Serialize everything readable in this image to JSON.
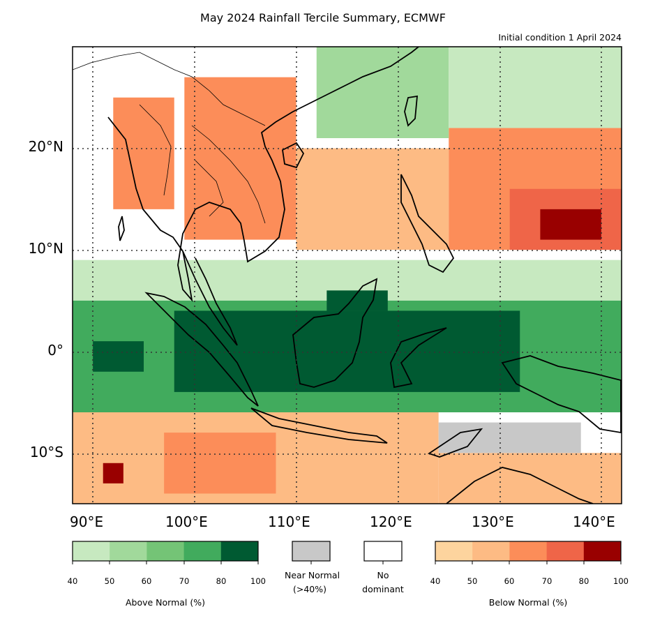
{
  "title": "May 2024 Rainfall Tercile Summary, ECMWF",
  "subtitle": "Initial condition 1 April 2024",
  "map": {
    "lat_labels": [
      "20°N",
      "10°N",
      "0°",
      "10°S"
    ],
    "lon_labels": [
      "90°E",
      "100°E",
      "110°E",
      "120°E",
      "130°E",
      "140°E"
    ],
    "lon_range": [
      88,
      142
    ],
    "lat_range": [
      -15,
      30
    ],
    "regions": [
      {
        "lon": [
          88,
          142
        ],
        "lat": [
          -15,
          30
        ],
        "cls": "white"
      },
      {
        "lon": [
          99,
          110
        ],
        "lat": [
          11,
          27
        ],
        "cls": "b60"
      },
      {
        "lon": [
          92,
          98
        ],
        "lat": [
          14,
          25
        ],
        "cls": "b60"
      },
      {
        "lon": [
          110,
          125
        ],
        "lat": [
          10,
          20
        ],
        "cls": "b50"
      },
      {
        "lon": [
          125,
          142
        ],
        "lat": [
          10,
          22
        ],
        "cls": "b60"
      },
      {
        "lon": [
          131,
          142
        ],
        "lat": [
          10,
          16
        ],
        "cls": "b70"
      },
      {
        "lon": [
          134,
          140
        ],
        "lat": [
          11,
          14
        ],
        "cls": "b80"
      },
      {
        "lon": [
          112,
          125
        ],
        "lat": [
          21,
          30
        ],
        "cls": "a50"
      },
      {
        "lon": [
          125,
          142
        ],
        "lat": [
          22,
          30
        ],
        "cls": "a40"
      },
      {
        "lon": [
          88,
          142
        ],
        "lat": [
          5,
          9
        ],
        "cls": "a40"
      },
      {
        "lon": [
          88,
          142
        ],
        "lat": [
          -6,
          5
        ],
        "cls": "a70"
      },
      {
        "lon": [
          90,
          95
        ],
        "lat": [
          -2,
          1
        ],
        "cls": "a80"
      },
      {
        "lon": [
          98,
          132
        ],
        "lat": [
          -4,
          4
        ],
        "cls": "a80"
      },
      {
        "lon": [
          113,
          119
        ],
        "lat": [
          4,
          6
        ],
        "cls": "a80"
      },
      {
        "lon": [
          88,
          124
        ],
        "lat": [
          -15,
          -6
        ],
        "cls": "b50"
      },
      {
        "lon": [
          97,
          108
        ],
        "lat": [
          -14,
          -8
        ],
        "cls": "b60"
      },
      {
        "lon": [
          91,
          93
        ],
        "lat": [
          -13,
          -11
        ],
        "cls": "b80"
      },
      {
        "lon": [
          124,
          142
        ],
        "lat": [
          -15,
          -10
        ],
        "cls": "b50"
      },
      {
        "lon": [
          124,
          138
        ],
        "lat": [
          -10,
          -7
        ],
        "cls": "near"
      }
    ]
  },
  "colors": {
    "a40": "#c7e9c0",
    "a50": "#a1d99b",
    "a60": "#74c476",
    "a70": "#41ab5d",
    "a80": "#005a32",
    "b40": "#fdd49e",
    "b50": "#fdbb84",
    "b60": "#fc8d59",
    "b70": "#ef6548",
    "b80": "#990000",
    "near": "#c8c8c8",
    "white": "#ffffff"
  },
  "legend": {
    "above": {
      "label": "Above Normal (%)",
      "ticks": [
        "40",
        "50",
        "60",
        "70",
        "80",
        "100"
      ],
      "colors": [
        "#c7e9c0",
        "#a1d99b",
        "#74c476",
        "#41ab5d",
        "#005a32"
      ]
    },
    "near": {
      "label_line1": "Near Normal",
      "label_line2": "(>40%)",
      "color": "#c8c8c8"
    },
    "none": {
      "label_line1": "No",
      "label_line2": "dominant",
      "color": "#ffffff"
    },
    "below": {
      "label": "Below Normal (%)",
      "ticks": [
        "40",
        "50",
        "60",
        "70",
        "80",
        "100"
      ],
      "colors": [
        "#fdd49e",
        "#fdbb84",
        "#fc8d59",
        "#ef6548",
        "#990000"
      ]
    }
  }
}
